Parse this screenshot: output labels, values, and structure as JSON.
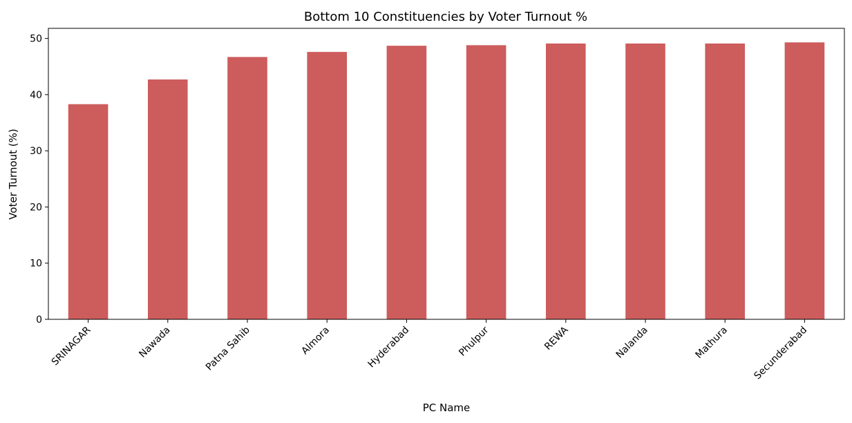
{
  "chart_data": {
    "type": "bar",
    "title": "Bottom 10 Constituencies by Voter Turnout %",
    "xlabel": "PC Name",
    "ylabel": "Voter Turnout (%)",
    "categories": [
      "SRINAGAR",
      "Nawada",
      "Patna Sahib",
      "Almora",
      "Hyderabad",
      "Phulpur",
      "REWA",
      "Nalanda",
      "Mathura",
      "Secunderabad"
    ],
    "values": [
      38.3,
      42.7,
      46.7,
      47.6,
      48.7,
      48.8,
      49.1,
      49.1,
      49.1,
      49.3
    ],
    "ylim": [
      0,
      51.8
    ],
    "yticks": [
      0,
      10,
      20,
      30,
      40,
      50
    ],
    "grid": false,
    "legend": "none",
    "bar_color": "#cd5c5c"
  }
}
